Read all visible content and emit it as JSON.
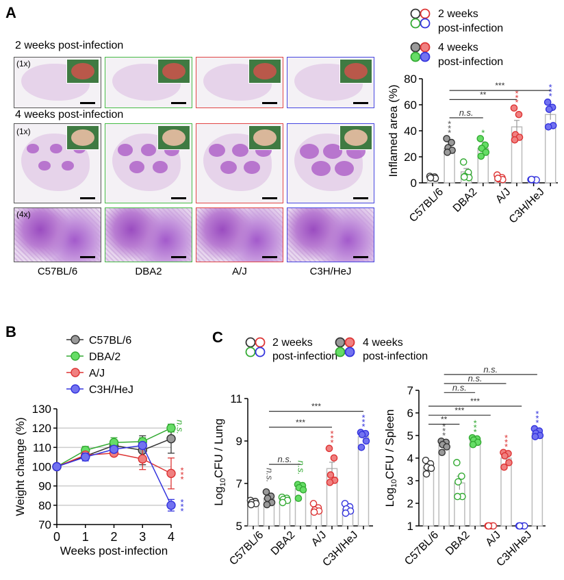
{
  "panels": {
    "a": "A",
    "b": "B",
    "c": "C"
  },
  "panel_a": {
    "row1_title": "2 weeks post-infection",
    "row2_title": "4 weeks post-infection",
    "mag_1x": "(1x)",
    "mag_4x": "(4x)",
    "strains": [
      "C57BL/6",
      "DBA2",
      "A/J",
      "C3H/HeJ"
    ],
    "strain_colors": [
      "#888888",
      "#44bb44",
      "#e04444",
      "#4444e0"
    ]
  },
  "legend_a": {
    "two_weeks": [
      "2 weeks",
      "post-infection"
    ],
    "four_weeks": [
      "4 weeks",
      "post-infection"
    ]
  },
  "legend_c": {
    "two_weeks": [
      "2 weeks",
      "post-infection"
    ],
    "four_weeks": [
      "4 weeks",
      "post-infection"
    ]
  },
  "colors": {
    "outline": [
      "#333333",
      "#33aa33",
      "#dd3333",
      "#3333dd"
    ],
    "fill": [
      "#9a9a9a",
      "#66dd66",
      "#f08080",
      "#7272f0"
    ],
    "bar": "#bbbbbb"
  },
  "chart_data": [
    {
      "id": "inflamed",
      "type": "bar",
      "ylabel": "Inflamed area (%)",
      "ylim": [
        0,
        80
      ],
      "yticks": [
        0,
        20,
        40,
        60,
        80
      ],
      "categories": [
        "C57BL/6",
        "DBA2",
        "A/J",
        "C3H/HeJ"
      ],
      "bars": [
        {
          "strain": 0,
          "week": 2,
          "mean": 4.2,
          "err": 0.4,
          "points": [
            5,
            4.5,
            4,
            3.5,
            3.8
          ],
          "mark": ""
        },
        {
          "strain": 0,
          "week": 4,
          "mean": 26.5,
          "err": 2,
          "points": [
            34,
            31,
            27,
            25,
            23.5
          ],
          "mark": "***"
        },
        {
          "strain": 1,
          "week": 2,
          "mean": 8.5,
          "err": 2.5,
          "points": [
            16,
            8,
            5,
            4,
            4.5
          ],
          "mark": ""
        },
        {
          "strain": 1,
          "week": 4,
          "mean": 26.5,
          "err": 5,
          "points": [
            34,
            29,
            26.5,
            23.5,
            20.5
          ],
          "mark": "*"
        },
        {
          "strain": 2,
          "week": 2,
          "mean": 4,
          "err": 1,
          "points": [
            6,
            4,
            3,
            2.5,
            3.5
          ],
          "mark": ""
        },
        {
          "strain": 2,
          "week": 4,
          "mean": 43,
          "err": 5,
          "points": [
            57.5,
            52.5,
            37,
            35,
            33
          ],
          "mark": "***"
        },
        {
          "strain": 3,
          "week": 2,
          "mean": 2.5,
          "err": 0.2,
          "points": [
            2.5,
            2.3,
            2.4,
            2.2,
            2.6
          ],
          "mark": ""
        },
        {
          "strain": 3,
          "week": 4,
          "mean": 52.5,
          "err": 4,
          "points": [
            62,
            58,
            56.5,
            44,
            43
          ],
          "mark": "***"
        }
      ],
      "brackets": [
        {
          "from": 1,
          "to": 3,
          "y": 50,
          "label": "n.s."
        },
        {
          "from": 1,
          "to": 5,
          "y": 64,
          "label": "**"
        },
        {
          "from": 1,
          "to": 7,
          "y": 71,
          "label": "***"
        }
      ]
    },
    {
      "id": "weight",
      "type": "line",
      "xlabel": "Weeks post-infection",
      "ylabel": "Weight change (%)",
      "x": [
        0,
        1,
        2,
        3,
        4
      ],
      "xlim": [
        0,
        4
      ],
      "ylim": [
        70,
        130
      ],
      "yticks": [
        70,
        80,
        90,
        100,
        110,
        120,
        130
      ],
      "grid": true,
      "legend": "top",
      "series": [
        {
          "name": "C57BL/6",
          "strain": 0,
          "values": [
            100,
            105.5,
            111,
            108.5,
            114.5
          ],
          "err": [
            0,
            1.5,
            1,
            7.5,
            7.5
          ],
          "mark": ""
        },
        {
          "name": "DBA/2",
          "strain": 1,
          "values": [
            100,
            108.5,
            112.5,
            113,
            120
          ],
          "err": [
            0,
            2,
            2.5,
            2,
            2
          ],
          "mark": "n.s."
        },
        {
          "name": "A/J",
          "strain": 2,
          "values": [
            100,
            106,
            107,
            104,
            96.5
          ],
          "err": [
            0,
            1,
            1,
            5.5,
            8
          ],
          "mark": "***"
        },
        {
          "name": "C3H/HeJ",
          "strain": 3,
          "values": [
            100,
            105,
            109,
            111,
            80
          ],
          "err": [
            0,
            2,
            1,
            1,
            3
          ],
          "mark": "***"
        }
      ]
    },
    {
      "id": "lung",
      "type": "bar",
      "ylabel": "Log10CFU / Lung",
      "ylim": [
        5,
        11
      ],
      "yticks": [
        5,
        7,
        9,
        11
      ],
      "categories": [
        "C57BL/6",
        "DBA2",
        "A/J",
        "C3H/HeJ"
      ],
      "bars": [
        {
          "strain": 0,
          "week": 2,
          "mean": 6.1,
          "err": 0.05,
          "points": [
            6.2,
            6.15,
            6.1,
            6.05,
            6.0
          ],
          "mark": ""
        },
        {
          "strain": 0,
          "week": 4,
          "mean": 6.3,
          "err": 0.15,
          "points": [
            6.6,
            6.4,
            6.3,
            6.1,
            6.0
          ],
          "mark": "n.s."
        },
        {
          "strain": 1,
          "week": 2,
          "mean": 6.2,
          "err": 0.05,
          "points": [
            6.35,
            6.3,
            6.25,
            6.2,
            6.1
          ],
          "mark": ""
        },
        {
          "strain": 1,
          "week": 4,
          "mean": 6.75,
          "err": 0.15,
          "points": [
            6.95,
            6.9,
            6.8,
            6.7,
            6.3
          ],
          "mark": "n.s."
        },
        {
          "strain": 2,
          "week": 2,
          "mean": 5.75,
          "err": 0.07,
          "points": [
            6.05,
            5.85,
            5.75,
            5.7,
            5.65
          ],
          "mark": ""
        },
        {
          "strain": 2,
          "week": 4,
          "mean": 7.7,
          "err": 0.3,
          "points": [
            8.65,
            8.2,
            7.4,
            7.15,
            7.05
          ],
          "mark": "***"
        },
        {
          "strain": 3,
          "week": 2,
          "mean": 5.8,
          "err": 0.08,
          "points": [
            6.05,
            5.9,
            5.8,
            5.7,
            5.6
          ],
          "mark": ""
        },
        {
          "strain": 3,
          "week": 4,
          "mean": 9.2,
          "err": 0.15,
          "points": [
            9.4,
            9.35,
            9.3,
            9.0,
            8.7
          ],
          "mark": "***"
        }
      ],
      "brackets": [
        {
          "from": 1,
          "to": 3,
          "y": 7.9,
          "label": "n.s."
        },
        {
          "from": 1,
          "to": 5,
          "y": 9.65,
          "label": "***"
        },
        {
          "from": 1,
          "to": 7,
          "y": 10.4,
          "label": "***"
        }
      ]
    },
    {
      "id": "spleen",
      "type": "bar",
      "ylabel": "Log10CFU / Spleen",
      "ylim": [
        1,
        7
      ],
      "yticks": [
        1,
        2,
        3,
        4,
        5,
        6,
        7
      ],
      "categories": [
        "C57BL/6",
        "DBA2",
        "A/J",
        "C3H/HeJ"
      ],
      "bars": [
        {
          "strain": 0,
          "week": 2,
          "mean": 3.6,
          "err": 0.1,
          "points": [
            3.9,
            3.75,
            3.6,
            3.55,
            3.3
          ],
          "mark": ""
        },
        {
          "strain": 0,
          "week": 4,
          "mean": 4.6,
          "err": 0.1,
          "points": [
            4.75,
            4.7,
            4.6,
            4.5,
            4.25
          ],
          "mark": "***"
        },
        {
          "strain": 1,
          "week": 2,
          "mean": 2.9,
          "err": 0.3,
          "points": [
            3.8,
            3.2,
            2.95,
            2.3,
            2.3
          ],
          "mark": ""
        },
        {
          "strain": 1,
          "week": 4,
          "mean": 4.8,
          "err": 0.05,
          "points": [
            4.9,
            4.85,
            4.8,
            4.7,
            4.6
          ],
          "mark": "***"
        },
        {
          "strain": 2,
          "week": 2,
          "mean": 1,
          "err": 0,
          "points": [
            1,
            1,
            1,
            1,
            1
          ],
          "mark": ""
        },
        {
          "strain": 2,
          "week": 4,
          "mean": 4.0,
          "err": 0.12,
          "points": [
            4.25,
            4.2,
            4.1,
            3.8,
            3.6
          ],
          "mark": "***"
        },
        {
          "strain": 3,
          "week": 2,
          "mean": 1,
          "err": 0,
          "points": [
            1,
            1,
            1,
            1,
            1
          ],
          "mark": ""
        },
        {
          "strain": 3,
          "week": 4,
          "mean": 5.1,
          "err": 0.07,
          "points": [
            5.3,
            5.2,
            5.1,
            5.0,
            4.95
          ],
          "mark": "***"
        }
      ],
      "brackets": [
        {
          "from": 0,
          "to": 2,
          "y": 5.5,
          "label": "**"
        },
        {
          "from": 0,
          "to": 4,
          "y": 5.9,
          "label": "***"
        },
        {
          "from": 0,
          "to": 6,
          "y": 6.3,
          "label": "***"
        },
        {
          "from": 1,
          "to": 3,
          "y": 6.9,
          "label": "n.s."
        },
        {
          "from": 1,
          "to": 5,
          "y": 7.3,
          "label": "n.s."
        },
        {
          "from": 1,
          "to": 7,
          "y": 7.7,
          "label": "n.s."
        }
      ]
    }
  ]
}
